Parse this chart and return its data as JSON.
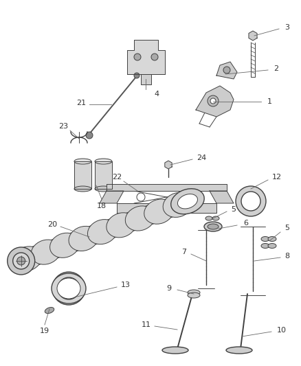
{
  "bg_color": "#ffffff",
  "line_color": "#404040",
  "label_color": "#333333",
  "fig_width": 4.38,
  "fig_height": 5.33,
  "dpi": 100
}
